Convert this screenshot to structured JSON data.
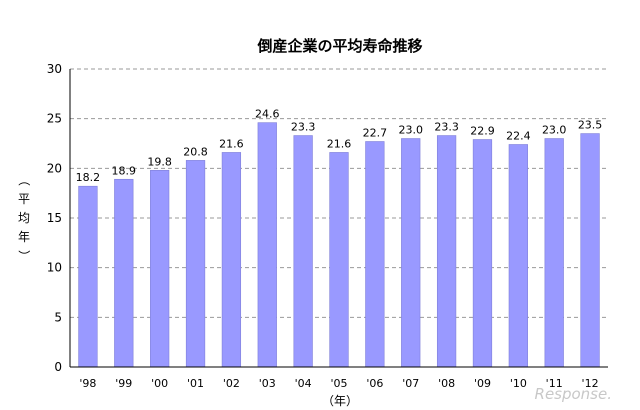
{
  "chart_data": {
    "type": "bar",
    "title": "倒産企業の平均寿命推移",
    "categories": [
      "'98",
      "'99",
      "'00",
      "'01",
      "'02",
      "'03",
      "'04",
      "'05",
      "'06",
      "'07",
      "'08",
      "'09",
      "'10",
      "'11",
      "'12"
    ],
    "values": [
      18.2,
      18.9,
      19.8,
      20.8,
      21.6,
      24.6,
      23.3,
      21.6,
      22.7,
      23.0,
      23.3,
      22.9,
      22.4,
      23.0,
      23.5
    ],
    "data_labels": [
      "18.2",
      "18.9",
      "19.8",
      "20.8",
      "21.6",
      "24.6",
      "23.3",
      "21.6",
      "22.7",
      "23.0",
      "23.3",
      "22.9",
      "22.4",
      "23.0",
      "23.5"
    ],
    "ylabel": "（平均年）",
    "ylabel_chars": [
      "（",
      "平",
      "均",
      "年",
      "）"
    ],
    "xlabel": "（年）",
    "ylim": [
      0,
      30
    ],
    "yticks": [
      0,
      5,
      10,
      15,
      20,
      25,
      30
    ],
    "grid": true,
    "bar_color": "#9999ff",
    "bar_stroke": "#7f7fd8"
  },
  "watermark": "Response."
}
